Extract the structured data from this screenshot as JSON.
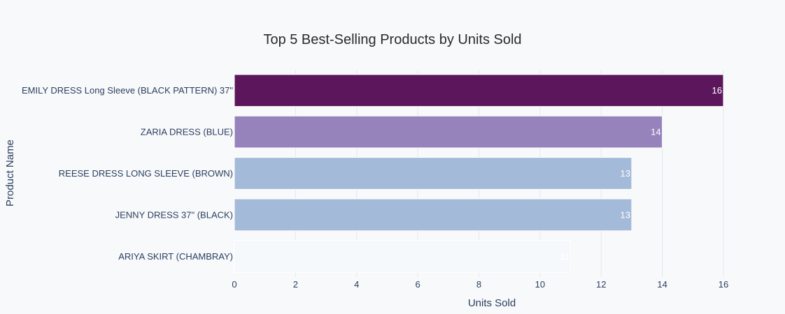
{
  "chart_data": {
    "type": "bar",
    "orientation": "horizontal",
    "title": "Top 5 Best-Selling Products by Units Sold",
    "xlabel": "Units Sold",
    "ylabel": "Product Name",
    "xlim": [
      0,
      16
    ],
    "x_ticks": [
      0,
      2,
      4,
      6,
      8,
      10,
      12,
      14,
      16
    ],
    "grid": true,
    "categories": [
      "EMILY DRESS Long Sleeve (BLACK PATTERN) 37\"",
      "ZARIA DRESS (BLUE)",
      "REESE DRESS LONG SLEEVE (BROWN)",
      "JENNY DRESS 37\" (BLACK)",
      "ARIYA SKIRT (CHAMBRAY)"
    ],
    "values": [
      16,
      14,
      13,
      13,
      11
    ],
    "bar_colors": [
      "#5c175c",
      "#9683bc",
      "#a4bad9",
      "#a4bad9",
      "#f5f9fc"
    ],
    "data_labels": [
      "16",
      "14",
      "13",
      "13",
      "11"
    ]
  },
  "colors": {
    "background": "#f8f9fb",
    "grid": "#e4e7ec",
    "text": "#2a3f5f"
  }
}
